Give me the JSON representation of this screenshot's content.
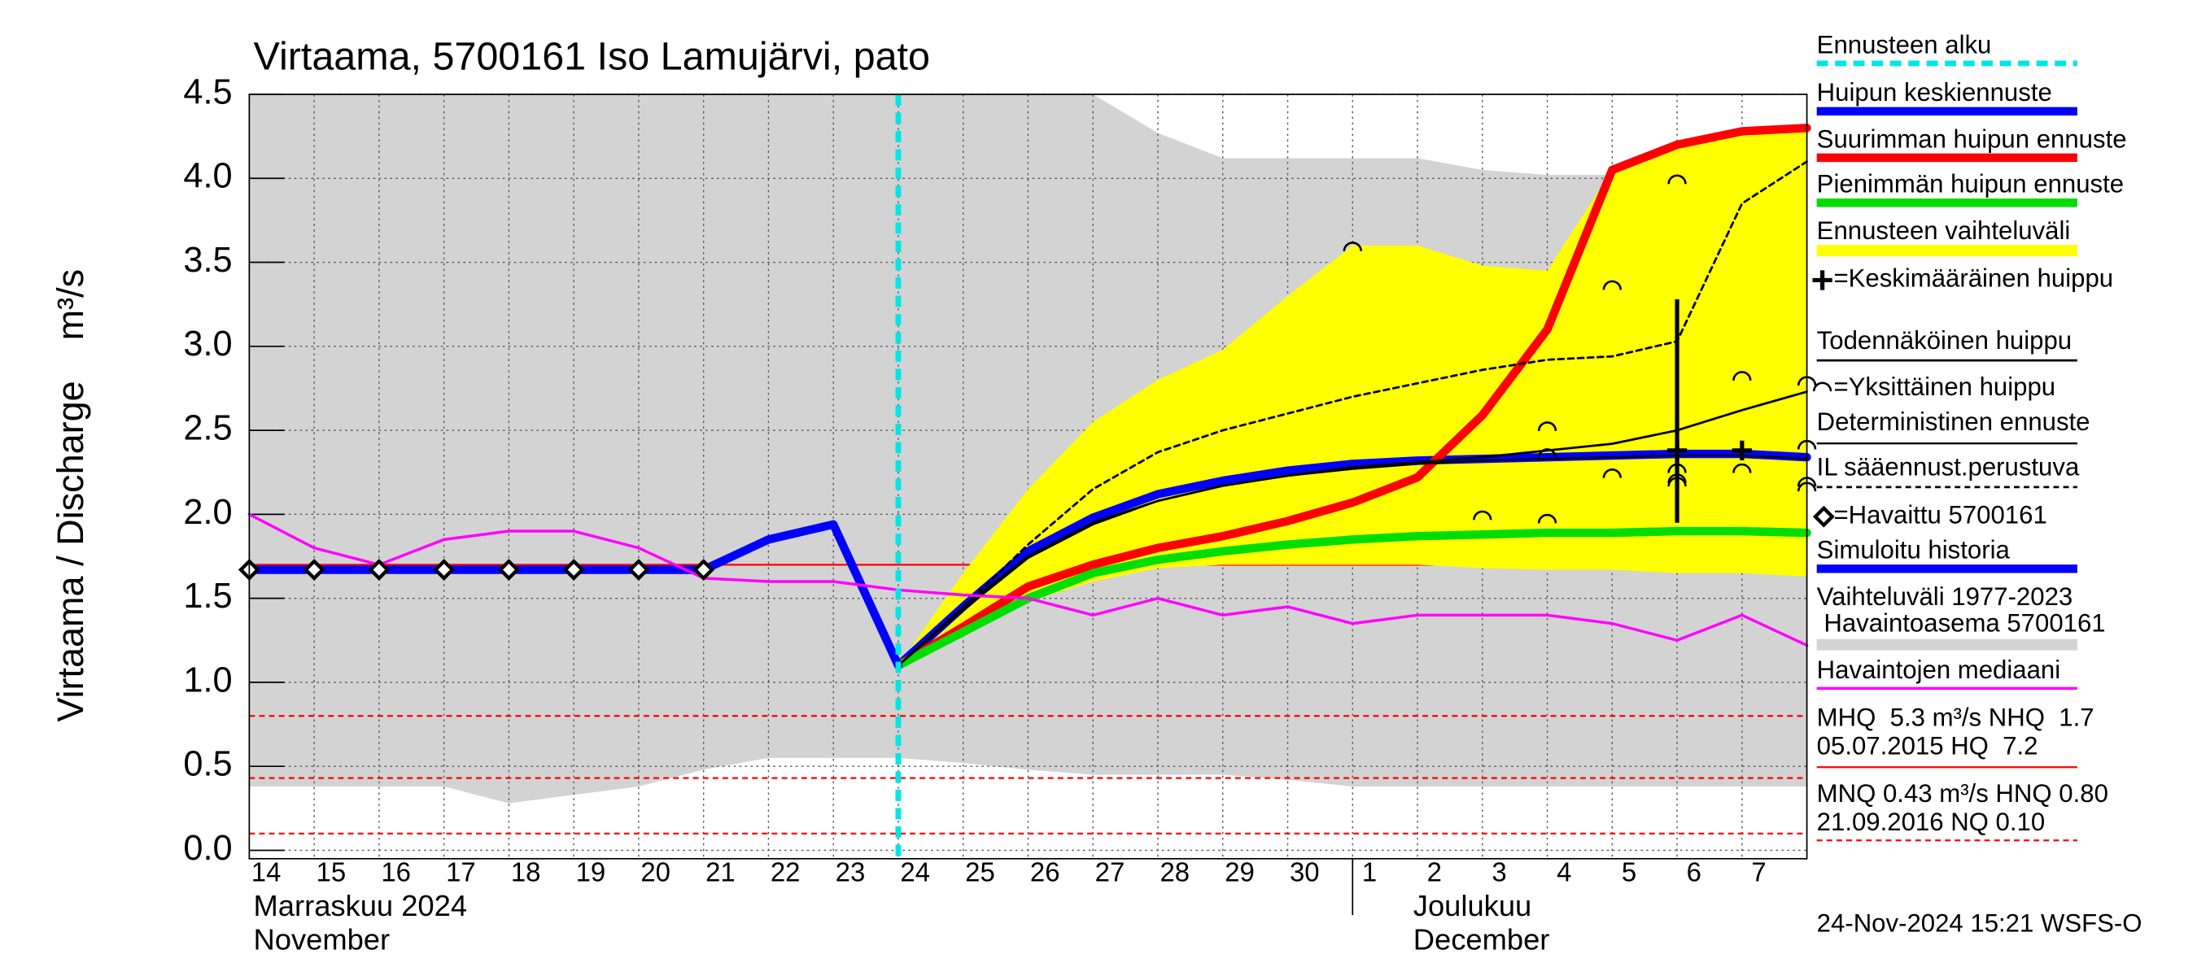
{
  "chart_data": {
    "type": "line",
    "title": "Virtaama, 5700161 Iso Lamujärvi, pato",
    "y_label": "Virtaama / Discharge    m³/s",
    "ylim": [
      -0.05,
      4.5
    ],
    "yticks": [
      {
        "value": 0,
        "label": "0.0"
      },
      0.5,
      {
        "value": 1,
        "label": "1.0"
      },
      1.5,
      {
        "value": 2,
        "label": "2.0"
      },
      2.5,
      {
        "value": 3,
        "label": "3.0"
      },
      3.5,
      {
        "value": 4,
        "label": "4.0"
      },
      4.5
    ],
    "grid": true,
    "categories": [
      "14",
      "15",
      "16",
      "17",
      "18",
      "19",
      "20",
      "21",
      "22",
      "23",
      "24",
      "25",
      "26",
      "27",
      "28",
      "29",
      "30",
      "1",
      "2",
      "3",
      "4",
      "5",
      "6",
      "7",
      null
    ],
    "months": [
      {
        "at": "14",
        "lines": [
          "Marraskuu 2024",
          "November"
        ]
      },
      {
        "at": "2",
        "lines": [
          "Joulukuu",
          "December"
        ]
      }
    ],
    "series": [
      {
        "name": "Ennusteen alku",
        "kind": "vline",
        "color": "#00e5e5",
        "at": "24"
      },
      {
        "name": "Huipun keskiennuste",
        "kind": "line",
        "color": "#0000ff",
        "width": 6,
        "values": [
          null,
          null,
          null,
          null,
          null,
          null,
          null,
          null,
          null,
          null,
          1.1,
          1.45,
          1.78,
          1.98,
          2.12,
          2.2,
          2.26,
          2.3,
          2.32,
          2.33,
          2.34,
          2.35,
          2.36,
          2.36,
          2.34
        ]
      },
      {
        "name": "Suurimman huipun ennuste",
        "kind": "line",
        "color": "#ff0000",
        "width": 6,
        "values": [
          null,
          null,
          null,
          null,
          null,
          null,
          null,
          null,
          null,
          null,
          1.1,
          1.33,
          1.57,
          1.7,
          1.8,
          1.87,
          1.96,
          2.07,
          2.22,
          2.59,
          3.1,
          4.05,
          4.2,
          4.28,
          4.3
        ]
      },
      {
        "name": "Pienimmän huipun ennuste",
        "kind": "line",
        "color": "#00dd00",
        "width": 6,
        "values": [
          null,
          null,
          null,
          null,
          null,
          null,
          null,
          null,
          null,
          null,
          1.1,
          1.3,
          1.5,
          1.65,
          1.73,
          1.78,
          1.82,
          1.85,
          1.87,
          1.88,
          1.89,
          1.89,
          1.9,
          1.9,
          1.89
        ]
      },
      {
        "name": "Ennusteen vaihteluväli",
        "kind": "band",
        "color": "#ffff00",
        "high": [
          null,
          null,
          null,
          null,
          null,
          null,
          null,
          null,
          null,
          null,
          1.1,
          1.65,
          2.15,
          2.55,
          2.8,
          2.98,
          3.3,
          3.6,
          3.6,
          3.48,
          3.45,
          4.05,
          4.2,
          4.28,
          4.3
        ],
        "low": [
          null,
          null,
          null,
          null,
          null,
          null,
          null,
          null,
          null,
          null,
          1.1,
          1.3,
          1.48,
          1.6,
          1.68,
          1.7,
          1.7,
          1.7,
          1.7,
          1.68,
          1.67,
          1.67,
          1.65,
          1.65,
          1.63
        ]
      },
      {
        "name": "=Keskimääräinen huippu",
        "kind": "cross",
        "color": "#000000",
        "values": [
          null,
          null,
          null,
          null,
          null,
          null,
          null,
          null,
          null,
          null,
          null,
          null,
          null,
          null,
          null,
          null,
          null,
          null,
          null,
          null,
          null,
          null,
          2.38,
          2.38,
          null
        ],
        "whisker": {
          "at": "6",
          "low": 1.95,
          "high": 3.28
        }
      },
      {
        "name": "Todennäköinen huippu",
        "kind": "line",
        "color": "#000000",
        "width": 1.6,
        "values": [
          null,
          null,
          null,
          null,
          null,
          null,
          null,
          null,
          null,
          null,
          1.1,
          1.45,
          1.75,
          1.95,
          2.08,
          2.17,
          2.23,
          2.28,
          2.31,
          2.34,
          2.38,
          2.42,
          2.5,
          2.62,
          2.73
        ]
      },
      {
        "name": "=Yksittäinen huippu",
        "kind": "arcs",
        "color": "#000000",
        "values": [
          [],
          [],
          [],
          [],
          [],
          [],
          [],
          [],
          [],
          [],
          [],
          [],
          [],
          [],
          [],
          [],
          [],
          [
            3.6
          ],
          [],
          [
            2.0
          ],
          [
            2.53,
            2.37,
            1.98
          ],
          [
            3.37,
            2.25
          ],
          [
            4.0,
            2.28,
            2.22,
            2.2
          ],
          [
            2.83,
            2.28
          ],
          [
            2.8,
            2.42,
            2.2,
            2.17
          ]
        ]
      },
      {
        "name": "Deterministinen ennuste",
        "kind": "line",
        "color": "#000000",
        "width": 1.4,
        "values": [
          null,
          null,
          null,
          null,
          null,
          null,
          null,
          null,
          null,
          null,
          1.1,
          1.43,
          1.74,
          1.94,
          2.08,
          2.17,
          2.23,
          2.27,
          2.3,
          2.32,
          2.33,
          2.34,
          2.35,
          2.35,
          2.33
        ]
      },
      {
        "name": "IL sääennust.perustuva",
        "kind": "dashed",
        "color": "#000000",
        "width": 1.6,
        "values": [
          null,
          null,
          null,
          null,
          null,
          null,
          null,
          null,
          null,
          null,
          1.1,
          1.45,
          1.82,
          2.15,
          2.37,
          2.5,
          2.6,
          2.7,
          2.78,
          2.86,
          2.92,
          2.94,
          3.03,
          3.85,
          4.1
        ]
      },
      {
        "name": "=Havaittu 5700161",
        "kind": "diamond",
        "color": "#000000",
        "values": [
          1.67,
          1.67,
          1.67,
          1.67,
          1.67,
          1.67,
          1.67,
          1.67,
          null,
          null,
          null,
          null,
          null,
          null,
          null,
          null,
          null,
          null,
          null,
          null,
          null,
          null,
          null,
          null,
          null
        ]
      },
      {
        "name": "Simuloitu historia",
        "kind": "line",
        "color": "#0000ff",
        "width": 6,
        "values": [
          1.67,
          1.67,
          1.67,
          1.67,
          1.67,
          1.67,
          1.67,
          1.67,
          1.85,
          1.94,
          1.1,
          null,
          null,
          null,
          null,
          null,
          null,
          null,
          null,
          null,
          null,
          null,
          null,
          null,
          null
        ]
      },
      {
        "name": "Vaihteluväli 1977-2023",
        "station": " Havaintoasema 5700161",
        "kind": "band",
        "color": "#d3d3d3",
        "high": [
          4.5,
          4.5,
          4.5,
          4.5,
          4.5,
          4.5,
          4.5,
          4.5,
          4.5,
          4.5,
          4.5,
          4.5,
          4.5,
          4.5,
          4.27,
          4.12,
          4.12,
          4.12,
          4.12,
          4.05,
          4.02,
          4.02,
          4.02,
          4.02,
          4.02
        ],
        "low": [
          0.38,
          0.38,
          0.38,
          0.38,
          0.28,
          0.33,
          0.38,
          0.48,
          0.55,
          0.55,
          0.55,
          0.52,
          0.48,
          0.45,
          0.45,
          0.45,
          0.42,
          0.38,
          0.38,
          0.38,
          0.38,
          0.38,
          0.38,
          0.38,
          0.38
        ]
      },
      {
        "name": "Havaintojen mediaani",
        "kind": "line",
        "color": "#ff00ff",
        "width": 2,
        "values": [
          2.0,
          1.8,
          1.7,
          1.85,
          1.9,
          1.9,
          1.8,
          1.62,
          1.6,
          1.6,
          1.55,
          1.52,
          1.5,
          1.4,
          1.5,
          1.4,
          1.45,
          1.35,
          1.4,
          1.4,
          1.4,
          1.35,
          1.25,
          1.4,
          1.22
        ]
      }
    ],
    "ref_lines": [
      {
        "value": 1.7,
        "style": "solid",
        "color": "#ff0000"
      },
      {
        "value": 0.8,
        "style": "dashed",
        "color": "#ff0000"
      },
      {
        "value": 0.43,
        "style": "dashed",
        "color": "#ff0000"
      },
      {
        "value": 0.1,
        "style": "dashed",
        "color": "#ff0000"
      }
    ],
    "stats": [
      "MHQ  5.3 m³/s NHQ  1.7",
      "05.07.2015 HQ  7.2",
      "MNQ 0.43 m³/s HNQ 0.80",
      "21.09.2016 NQ 0.10"
    ],
    "footer": "24-Nov-2024 15:21 WSFS-O"
  }
}
